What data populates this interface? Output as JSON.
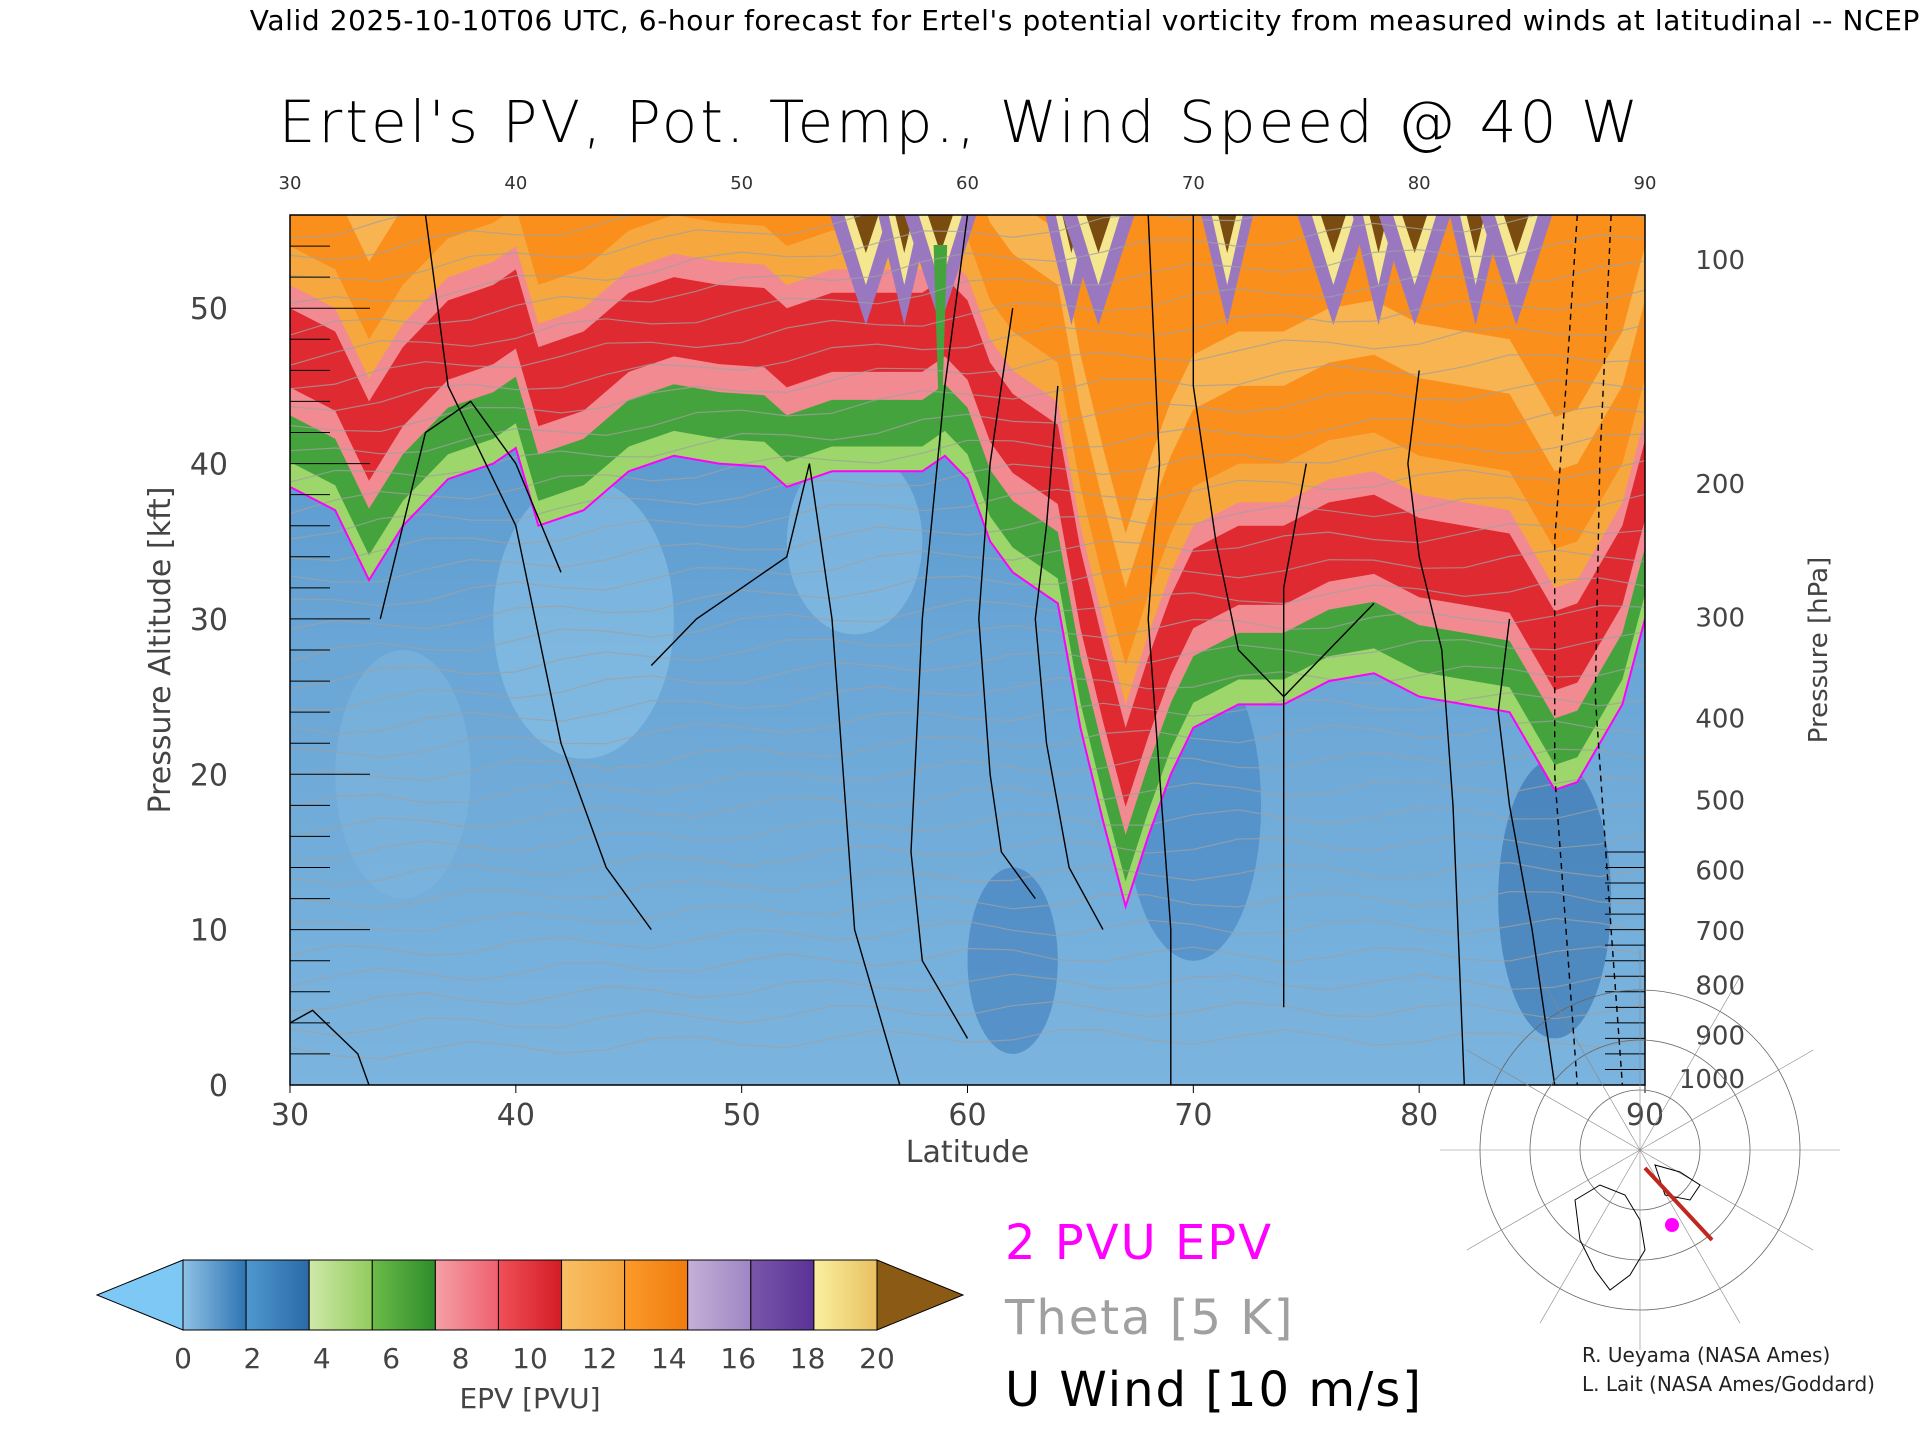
{
  "header": {
    "text": "Valid 2025-10-10T06 UTC, 6-hour forecast for Ertel's potential vorticity from measured winds at latitudinal -- NCEP"
  },
  "chart_data": {
    "type": "heatmap",
    "title": "Ertel's PV, Pot. Temp., Wind Speed @ 40 W",
    "xlabel": "Latitude",
    "ylabel_left": "Pressure Altitude [kft]",
    "ylabel_right": "Pressure [hPa]",
    "xlim": [
      30,
      90
    ],
    "ylim": [
      0,
      56
    ],
    "x_ticks": [
      30,
      40,
      50,
      60,
      70,
      80,
      90
    ],
    "top_ticks": [
      30,
      40,
      50,
      60,
      70,
      80,
      90
    ],
    "y_ticks": [
      0,
      10,
      20,
      30,
      40,
      50
    ],
    "pressure_ticks": [
      {
        "p": 100,
        "kft": 53.1
      },
      {
        "p": 200,
        "kft": 38.7
      },
      {
        "p": 300,
        "kft": 30.1
      },
      {
        "p": 400,
        "kft": 23.6
      },
      {
        "p": 500,
        "kft": 18.3
      },
      {
        "p": 600,
        "kft": 13.8
      },
      {
        "p": 700,
        "kft": 9.9
      },
      {
        "p": 800,
        "kft": 6.4
      },
      {
        "p": 900,
        "kft": 3.2
      },
      {
        "p": 1000,
        "kft": 0.4
      }
    ],
    "pv_2pvu_boundary": {
      "lat": [
        30,
        32,
        33.5,
        35,
        37,
        38,
        39,
        40,
        41,
        43,
        45,
        47,
        49,
        51,
        52,
        54,
        56,
        58,
        59,
        60,
        61,
        62,
        63,
        64,
        65,
        66,
        67,
        68,
        69,
        70,
        72,
        74,
        76,
        78,
        80,
        82,
        84,
        86,
        87,
        88,
        89,
        90
      ],
      "kft": [
        38.5,
        37,
        32.5,
        36,
        39,
        39.5,
        40,
        41,
        36,
        37,
        39.5,
        40.5,
        40,
        39.8,
        38.5,
        39.5,
        39.5,
        39.5,
        40.5,
        39,
        35,
        33,
        32,
        31,
        23,
        17,
        11.5,
        16,
        20,
        23,
        24.5,
        24.5,
        26,
        26.5,
        25,
        24.5,
        24,
        19,
        19.5,
        22,
        24.5,
        30
      ]
    },
    "colorbar": {
      "label": "EPV [PVU]",
      "ticks": [
        0,
        2,
        4,
        6,
        8,
        10,
        12,
        14,
        16,
        18,
        20
      ],
      "under_color": "#7ec8f5",
      "over_color": "#8b5a14",
      "bands": [
        [
          "#8ec2e6",
          "#2f74b2"
        ],
        [
          "#4f98cf",
          "#2a6aa8"
        ],
        [
          "#cfe8a8",
          "#92cc5e"
        ],
        [
          "#6cbb4a",
          "#2e8c2a"
        ],
        [
          "#f4a0a6",
          "#f06070"
        ],
        [
          "#f05058",
          "#d41c24"
        ],
        [
          "#f7c066",
          "#f6a43c"
        ],
        [
          "#fc9a2a",
          "#ef7c0e"
        ],
        [
          "#c4b0d8",
          "#9e86c4"
        ],
        [
          "#7a56aa",
          "#5a3296"
        ],
        [
          "#faf0a0",
          "#e8c060"
        ]
      ]
    }
  },
  "legend": {
    "pvu": "2 PVU EPV",
    "theta": "Theta [5 K]",
    "wind": "U Wind [10 m/s]"
  },
  "credits": {
    "line1": "R. Ueyama (NASA Ames)",
    "line2": "L. Lait (NASA Ames/Goddard)"
  },
  "colors": {
    "pv_contour": "#ff00ff",
    "theta_contour": "#a0a0a0",
    "wind_contour": "#000000",
    "track": "#c0281e",
    "marker": "#ff00ff"
  }
}
